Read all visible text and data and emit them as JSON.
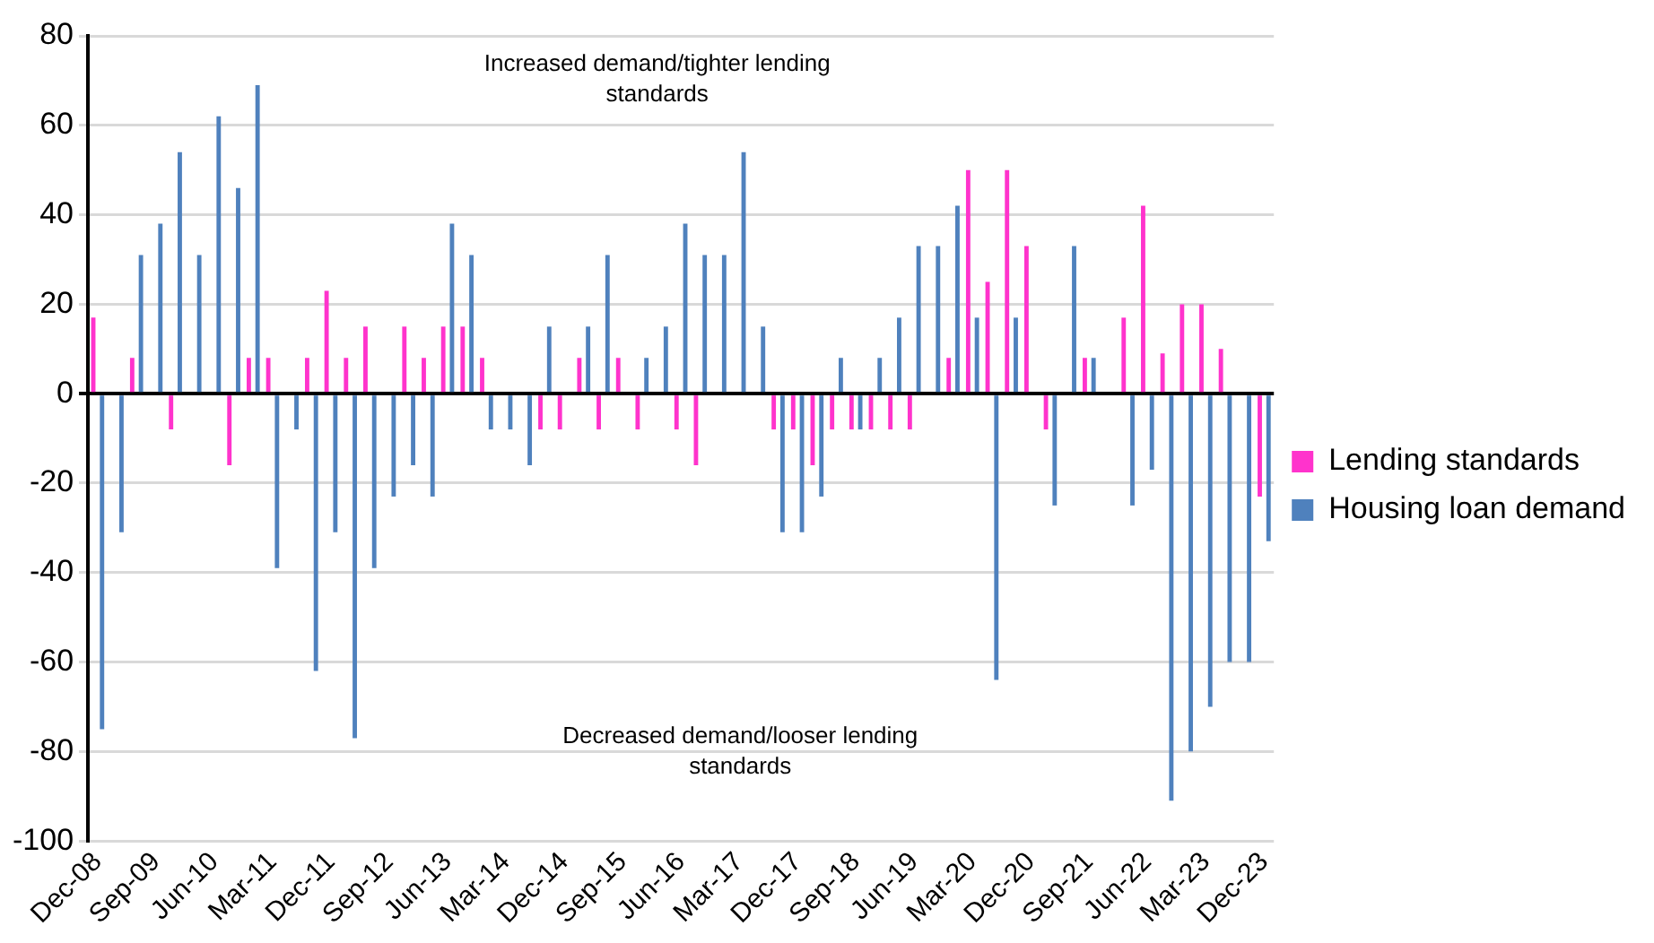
{
  "chart_data": {
    "type": "bar",
    "categories": [
      "Dec-08",
      null,
      null,
      "Sep-09",
      null,
      null,
      "Jun-10",
      null,
      null,
      "Mar-11",
      null,
      null,
      "Dec-11",
      null,
      null,
      "Sep-12",
      null,
      null,
      "Jun-13",
      null,
      null,
      "Mar-14",
      null,
      null,
      "Dec-14",
      null,
      null,
      "Sep-15",
      null,
      null,
      "Jun-16",
      null,
      null,
      "Mar-17",
      null,
      null,
      "Dec-17",
      null,
      null,
      "Sep-18",
      null,
      null,
      "Jun-19",
      null,
      null,
      "Mar-20",
      null,
      null,
      "Dec-20",
      null,
      null,
      "Sep-21",
      null,
      null,
      "Jun-22",
      null,
      null,
      "Mar-23",
      null,
      null,
      "Dec-23"
    ],
    "series": [
      {
        "name": "Lending standards",
        "color": "#ff33cc",
        "values": [
          17,
          0,
          8,
          0,
          -8,
          0,
          0,
          -16,
          8,
          8,
          0,
          8,
          23,
          8,
          15,
          0,
          15,
          8,
          15,
          15,
          8,
          0,
          0,
          -8,
          -8,
          8,
          -8,
          8,
          -8,
          0,
          -8,
          -16,
          0,
          0,
          0,
          -8,
          -8,
          -16,
          -8,
          -8,
          -8,
          -8,
          -8,
          0,
          8,
          50,
          25,
          50,
          33,
          -8,
          0,
          8,
          0,
          17,
          42,
          9,
          20,
          20,
          10,
          0,
          -23
        ]
      },
      {
        "name": "Housing loan demand",
        "color": "#4f81bd",
        "values": [
          -75,
          -31,
          31,
          38,
          54,
          31,
          62,
          46,
          69,
          -39,
          -8,
          -62,
          -31,
          -77,
          -39,
          -23,
          -16,
          -23,
          38,
          31,
          -8,
          -8,
          -16,
          15,
          0,
          15,
          31,
          0,
          8,
          15,
          38,
          31,
          31,
          54,
          15,
          -31,
          -31,
          -23,
          8,
          -8,
          8,
          17,
          33,
          33,
          42,
          17,
          -64,
          17,
          0,
          -25,
          33,
          8,
          0,
          -25,
          -17,
          -91,
          -80,
          -70,
          -60,
          -60,
          -33
        ]
      }
    ],
    "ylim": [
      -100,
      80
    ],
    "yticks": [
      -100,
      -80,
      -60,
      -40,
      -20,
      0,
      20,
      40,
      60,
      80
    ],
    "grid": "y",
    "legend": "right",
    "annotations": [
      "Increased demand/tighter lending standards",
      "Decreased demand/looser lending standards"
    ]
  }
}
